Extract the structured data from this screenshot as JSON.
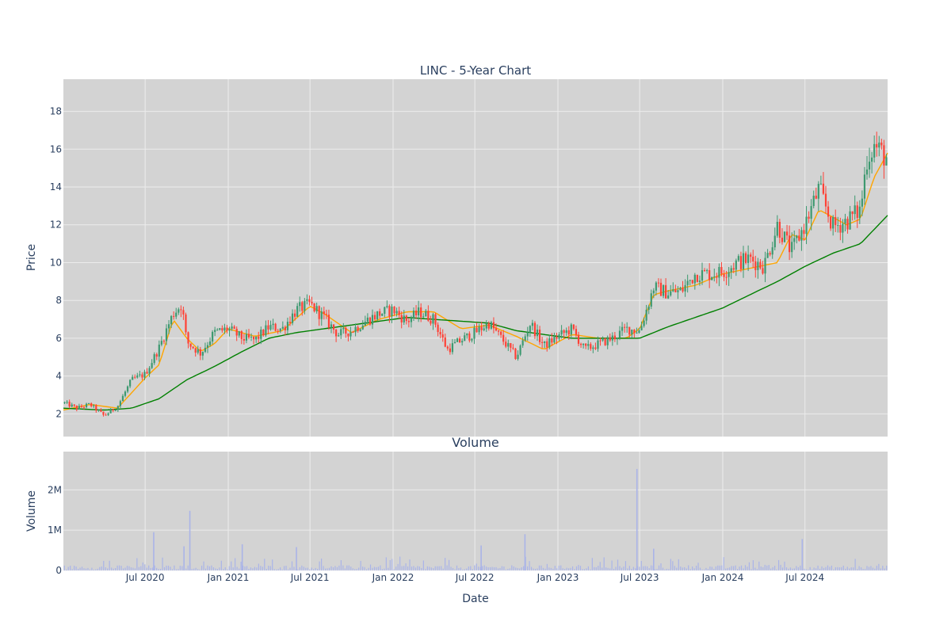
{
  "chart_data": [
    {
      "type": "candlestick",
      "title": "LINC - 5-Year Chart",
      "ylabel": "Price",
      "ylim": [
        0.8,
        19.7
      ],
      "yticks": [
        2,
        4,
        6,
        8,
        10,
        12,
        14,
        16,
        18
      ],
      "xlim": [
        "2020-01-02",
        "2024-12-31"
      ],
      "grid": true,
      "colors": {
        "up": "#3d9970",
        "down": "#ff4136",
        "ma_short": "#ffa500",
        "ma_long": "#008000",
        "plot_bg": "#d3d3d3",
        "grid": "#ececec"
      },
      "series": [
        {
          "kind": "close",
          "x": [
            "2020-01-02",
            "2020-02-01",
            "2020-03-01",
            "2020-04-01",
            "2020-05-01",
            "2020-06-01",
            "2020-07-01",
            "2020-08-01",
            "2020-09-01",
            "2020-09-20",
            "2020-10-01",
            "2020-11-01",
            "2020-12-01",
            "2021-01-01",
            "2021-02-01",
            "2021-03-01",
            "2021-04-01",
            "2021-05-01",
            "2021-06-01",
            "2021-07-01",
            "2021-08-01",
            "2021-09-01",
            "2021-10-01",
            "2021-11-01",
            "2021-12-01",
            "2022-01-01",
            "2022-02-01",
            "2022-03-01",
            "2022-04-01",
            "2022-05-01",
            "2022-06-01",
            "2022-07-01",
            "2022-08-01",
            "2022-09-01",
            "2022-10-01",
            "2022-11-01",
            "2022-12-01",
            "2023-01-01",
            "2023-02-01",
            "2023-03-01",
            "2023-04-01",
            "2023-05-01",
            "2023-06-01",
            "2023-07-01",
            "2023-08-01",
            "2023-09-01",
            "2023-10-01",
            "2023-11-01",
            "2023-12-01",
            "2024-01-01",
            "2024-02-01",
            "2024-03-01",
            "2024-04-01",
            "2024-05-01",
            "2024-06-01",
            "2024-07-01",
            "2024-08-01",
            "2024-09-01",
            "2024-10-01",
            "2024-11-01",
            "2024-11-15",
            "2024-12-01",
            "2024-12-31"
          ],
          "values": [
            2.6,
            2.3,
            2.5,
            1.9,
            2.4,
            3.8,
            4.1,
            5.5,
            7.3,
            7.8,
            5.8,
            5.2,
            6.3,
            6.5,
            6.0,
            5.9,
            6.6,
            6.5,
            7.5,
            7.8,
            7.1,
            6.2,
            6.4,
            6.9,
            7.3,
            7.5,
            6.9,
            7.4,
            7.0,
            5.4,
            5.9,
            6.3,
            6.8,
            5.9,
            5.0,
            6.8,
            5.6,
            6.1,
            6.5,
            5.4,
            5.7,
            6.0,
            6.5,
            6.4,
            8.7,
            8.4,
            8.5,
            9.4,
            9.4,
            9.5,
            10.0,
            10.2,
            9.8,
            12.0,
            10.6,
            12.0,
            13.9,
            11.9,
            12.2,
            12.8,
            15.5,
            16.2,
            15.5
          ]
        },
        {
          "kind": "ma_short",
          "x": [
            "2020-01-02",
            "2020-03-01",
            "2020-05-01",
            "2020-07-01",
            "2020-08-01",
            "2020-09-01",
            "2020-10-01",
            "2020-11-01",
            "2020-12-01",
            "2021-01-01",
            "2021-03-01",
            "2021-05-01",
            "2021-07-01",
            "2021-08-01",
            "2021-10-01",
            "2021-12-01",
            "2022-02-01",
            "2022-04-01",
            "2022-06-01",
            "2022-08-01",
            "2022-10-01",
            "2022-12-01",
            "2023-02-01",
            "2023-04-01",
            "2023-06-01",
            "2023-07-01",
            "2023-08-01",
            "2023-09-01",
            "2023-11-01",
            "2024-01-01",
            "2024-03-01",
            "2024-05-01",
            "2024-06-01",
            "2024-07-01",
            "2024-08-01",
            "2024-09-01",
            "2024-10-01",
            "2024-11-01",
            "2024-12-01",
            "2024-12-31"
          ],
          "values": [
            2.2,
            2.5,
            2.3,
            3.9,
            4.6,
            7.0,
            6.0,
            5.3,
            5.7,
            6.5,
            6.1,
            6.4,
            7.7,
            7.3,
            6.3,
            7.0,
            7.4,
            7.4,
            6.5,
            6.7,
            6.1,
            5.4,
            6.2,
            6.0,
            6.0,
            6.5,
            8.3,
            8.5,
            8.8,
            9.4,
            9.7,
            10.0,
            11.5,
            11.2,
            12.8,
            12.4,
            12.0,
            12.3,
            14.5,
            15.8
          ]
        },
        {
          "kind": "ma_long",
          "x": [
            "2020-01-02",
            "2020-04-01",
            "2020-06-01",
            "2020-08-01",
            "2020-10-01",
            "2020-12-01",
            "2021-02-01",
            "2021-04-01",
            "2021-06-01",
            "2021-08-01",
            "2021-10-01",
            "2021-12-01",
            "2022-02-01",
            "2022-04-01",
            "2022-06-01",
            "2022-08-01",
            "2022-10-01",
            "2022-12-01",
            "2023-02-01",
            "2023-04-01",
            "2023-07-01",
            "2023-09-01",
            "2023-11-01",
            "2024-01-01",
            "2024-03-01",
            "2024-05-01",
            "2024-07-01",
            "2024-09-01",
            "2024-11-01",
            "2024-12-31"
          ],
          "values": [
            2.3,
            2.2,
            2.3,
            2.8,
            3.8,
            4.5,
            5.3,
            6.0,
            6.3,
            6.5,
            6.7,
            6.9,
            7.1,
            7.0,
            6.9,
            6.8,
            6.4,
            6.2,
            6.0,
            6.0,
            6.0,
            6.6,
            7.1,
            7.6,
            8.3,
            9.0,
            9.8,
            10.5,
            11.0,
            12.5
          ]
        }
      ]
    },
    {
      "type": "bar",
      "title": "Volume",
      "xlabel": "Date",
      "ylabel": "Volume",
      "ylim": [
        0,
        2950000
      ],
      "yticks": [
        {
          "value": 0,
          "label": "0"
        },
        {
          "value": 1000000,
          "label": "1M"
        },
        {
          "value": 2000000,
          "label": "2M"
        }
      ],
      "xticks": [
        {
          "date": "2020-07-01",
          "label": "Jul 2020"
        },
        {
          "date": "2021-01-01",
          "label": "Jan 2021"
        },
        {
          "date": "2021-07-01",
          "label": "Jul 2021"
        },
        {
          "date": "2022-01-01",
          "label": "Jan 2022"
        },
        {
          "date": "2022-07-01",
          "label": "Jul 2022"
        },
        {
          "date": "2023-01-01",
          "label": "Jan 2023"
        },
        {
          "date": "2023-07-01",
          "label": "Jul 2023"
        },
        {
          "date": "2024-01-01",
          "label": "Jan 2024"
        },
        {
          "date": "2024-07-01",
          "label": "Jul 2024"
        }
      ],
      "color": "#aab4e8",
      "spikes": {
        "x": [
          "2020-07-20",
          "2020-09-25",
          "2020-10-08",
          "2021-02-01",
          "2021-06-01",
          "2022-07-15",
          "2022-10-20",
          "2023-06-25",
          "2023-08-01",
          "2024-06-25"
        ],
        "values": [
          950000,
          600000,
          1480000,
          650000,
          580000,
          620000,
          900000,
          2520000,
          540000,
          780000
        ]
      }
    }
  ]
}
